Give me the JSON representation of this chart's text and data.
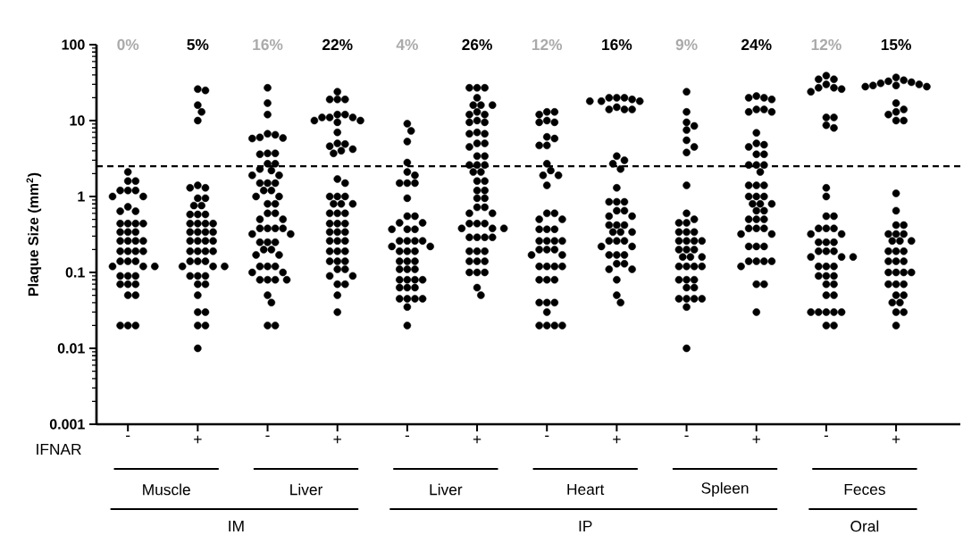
{
  "chart_data": {
    "type": "scatter",
    "ylabel": "Plaque Size (mm$^{2}$)",
    "categories": [
      "-",
      "+",
      "-",
      "+",
      "-",
      "+",
      "-",
      "+",
      "-",
      "+",
      "-",
      "+"
    ],
    "series": [
      {
        "color": "#000000",
        "values": [
          2.1,
          26,
          27,
          24,
          9.1,
          27,
          13,
          20,
          24,
          21,
          39,
          37
        ]
      },
      {
        "color": "#000000",
        "values": [
          1.6,
          25,
          17,
          19,
          7.3,
          27,
          12,
          20,
          13,
          20,
          35,
          34
        ]
      },
      {
        "color": "#000000",
        "values": [
          1.6,
          16,
          12,
          19,
          5.3,
          27,
          13,
          19,
          9.5,
          20,
          35,
          32
        ]
      },
      {
        "color": "#000000",
        "values": [
          1.2,
          13,
          6.7,
          19,
          2.8,
          20,
          10,
          20,
          8.5,
          19,
          30,
          30
        ]
      },
      {
        "color": "#000000",
        "values": [
          1.2,
          10,
          6.5,
          12,
          2.1,
          16,
          9.5,
          18,
          7.5,
          14,
          27,
          29
        ]
      },
      {
        "color": "#000000",
        "values": [
          1.2,
          1.4,
          6,
          12,
          1.9,
          16,
          9.5,
          18,
          5.5,
          14,
          27,
          28
        ]
      },
      {
        "color": "#000000",
        "values": [
          1,
          1.3,
          5.9,
          11,
          1.5,
          16,
          6.1,
          18,
          4.5,
          13,
          26,
          28
        ]
      },
      {
        "color": "#000000",
        "values": [
          1,
          1.3,
          5.8,
          11,
          1.5,
          13,
          5.8,
          15,
          3.8,
          13,
          24,
          29
        ]
      },
      {
        "color": "#000000",
        "values": [
          0.73,
          0.95,
          3.7,
          11,
          1.5,
          12,
          4.7,
          14,
          1.4,
          6.9,
          11,
          31
        ]
      },
      {
        "color": "#000000",
        "values": [
          0.64,
          0.95,
          3.6,
          10,
          0.95,
          12,
          4.7,
          14,
          0.6,
          5,
          11,
          33
        ]
      },
      {
        "color": "#000000",
        "values": [
          0.64,
          0.76,
          3.7,
          10,
          0.55,
          10,
          2.7,
          14,
          0.5,
          4.8,
          8.7,
          17
        ]
      },
      {
        "color": "#000000",
        "values": [
          0.44,
          0.76,
          2.7,
          9.5,
          0.55,
          9.5,
          2.2,
          3.4,
          0.45,
          4.5,
          8,
          14
        ]
      },
      {
        "color": "#000000",
        "values": [
          0.44,
          0.58,
          2.7,
          7,
          0.45,
          9.5,
          1.9,
          3,
          0.45,
          3.6,
          1.3,
          13
        ]
      },
      {
        "color": "#000000",
        "values": [
          0.44,
          0.58,
          2.3,
          5,
          0.45,
          7,
          1.9,
          2.7,
          0.34,
          3.6,
          1,
          12
        ]
      },
      {
        "color": "#000000",
        "values": [
          0.44,
          0.58,
          2.2,
          4.9,
          0.37,
          6.7,
          1.4,
          2.3,
          0.34,
          2.6,
          0.55,
          10
        ]
      },
      {
        "color": "#000000",
        "values": [
          0.34,
          0.44,
          1.9,
          4.6,
          0.37,
          6.7,
          0.6,
          1.3,
          0.34,
          2.6,
          0.55,
          10
        ]
      },
      {
        "color": "#000000",
        "values": [
          0.34,
          0.44,
          1.9,
          4.2,
          0.37,
          5,
          0.6,
          0.85,
          0.26,
          2.6,
          0.38,
          1.1
        ]
      },
      {
        "color": "#000000",
        "values": [
          0.34,
          0.44,
          1.5,
          4,
          0.26,
          5,
          0.5,
          0.85,
          0.26,
          2.1,
          0.38,
          0.65
        ]
      },
      {
        "color": "#000000",
        "values": [
          0.26,
          0.44,
          1.5,
          3.7,
          0.26,
          4.5,
          0.5,
          0.85,
          0.26,
          1.4,
          0.38,
          0.42
        ]
      },
      {
        "color": "#000000",
        "values": [
          0.26,
          0.34,
          1.5,
          1.7,
          0.26,
          3.4,
          0.37,
          0.65,
          0.26,
          1.4,
          0.32,
          0.42
        ]
      },
      {
        "color": "#000000",
        "values": [
          0.26,
          0.34,
          1.2,
          1.5,
          0.26,
          3.4,
          0.37,
          0.65,
          0.2,
          1.4,
          0.32,
          0.32
        ]
      },
      {
        "color": "#000000",
        "values": [
          0.26,
          0.34,
          1.2,
          1,
          0.22,
          2.6,
          0.37,
          0.55,
          0.2,
          1,
          0.25,
          0.32
        ]
      },
      {
        "color": "#000000",
        "values": [
          0.19,
          0.34,
          1,
          1,
          0.22,
          2.6,
          0.26,
          0.55,
          0.2,
          1,
          0.25,
          0.32
        ]
      },
      {
        "color": "#000000",
        "values": [
          0.19,
          0.26,
          1,
          1,
          0.19,
          2.6,
          0.26,
          0.42,
          0.16,
          1,
          0.25,
          0.26
        ]
      },
      {
        "color": "#000000",
        "values": [
          0.19,
          0.26,
          0.8,
          0.8,
          0.19,
          2.1,
          0.26,
          0.42,
          0.16,
          0.8,
          0.19,
          0.26
        ]
      },
      {
        "color": "#000000",
        "values": [
          0.19,
          0.26,
          0.8,
          0.8,
          0.19,
          2.1,
          0.26,
          0.42,
          0.16,
          0.8,
          0.19,
          0.26
        ]
      },
      {
        "color": "#000000",
        "values": [
          0.14,
          0.26,
          0.6,
          0.8,
          0.14,
          1.6,
          0.2,
          0.34,
          0.12,
          0.8,
          0.19,
          0.19
        ]
      },
      {
        "color": "#000000",
        "values": [
          0.14,
          0.19,
          0.6,
          0.6,
          0.14,
          1.6,
          0.2,
          0.34,
          0.12,
          0.65,
          0.16,
          0.19
        ]
      },
      {
        "color": "#000000",
        "values": [
          0.14,
          0.19,
          0.5,
          0.6,
          0.14,
          1.2,
          0.2,
          0.34,
          0.12,
          0.65,
          0.16,
          0.19
        ]
      },
      {
        "color": "#000000",
        "values": [
          0.12,
          0.19,
          0.5,
          0.6,
          0.11,
          1.2,
          0.17,
          0.26,
          0.12,
          0.5,
          0.16,
          0.14
        ]
      },
      {
        "color": "#000000",
        "values": [
          0.12,
          0.19,
          0.38,
          0.44,
          0.11,
          0.95,
          0.17,
          0.26,
          0.08,
          0.5,
          0.12,
          0.14
        ]
      },
      {
        "color": "#000000",
        "values": [
          0.12,
          0.14,
          0.38,
          0.44,
          0.11,
          0.95,
          0.12,
          0.26,
          0.08,
          0.5,
          0.12,
          0.14
        ]
      },
      {
        "color": "#000000",
        "values": [
          0.09,
          0.14,
          0.38,
          0.44,
          0.08,
          0.72,
          0.12,
          0.22,
          0.08,
          0.38,
          0.12,
          0.1
        ]
      },
      {
        "color": "#000000",
        "values": [
          0.09,
          0.14,
          0.38,
          0.34,
          0.08,
          0.72,
          0.12,
          0.22,
          0.063,
          0.38,
          0.09,
          0.1
        ]
      },
      {
        "color": "#000000",
        "values": [
          0.09,
          0.12,
          0.32,
          0.34,
          0.08,
          0.6,
          0.12,
          0.17,
          0.063,
          0.38,
          0.09,
          0.1
        ]
      },
      {
        "color": "#000000",
        "values": [
          0.07,
          0.12,
          0.32,
          0.34,
          0.08,
          0.6,
          0.08,
          0.17,
          0.045,
          0.32,
          0.09,
          0.1
        ]
      },
      {
        "color": "#000000",
        "values": [
          0.07,
          0.12,
          0.25,
          0.26,
          0.063,
          0.44,
          0.08,
          0.17,
          0.045,
          0.32,
          0.07,
          0.07
        ]
      },
      {
        "color": "#000000",
        "values": [
          0.07,
          0.09,
          0.25,
          0.26,
          0.063,
          0.44,
          0.08,
          0.13,
          0.045,
          0.22,
          0.07,
          0.07
        ]
      },
      {
        "color": "#000000",
        "values": [
          0.05,
          0.09,
          0.25,
          0.26,
          0.063,
          0.44,
          0.04,
          0.13,
          0.045,
          0.22,
          0.05,
          0.07
        ]
      },
      {
        "color": "#000000",
        "values": [
          0.05,
          0.09,
          0.2,
          0.19,
          0.045,
          0.38,
          0.04,
          0.11,
          0.035,
          0.22,
          0.05,
          0.05
        ]
      },
      {
        "color": "#000000",
        "values": [
          0.02,
          0.07,
          0.2,
          0.19,
          0.045,
          0.38,
          0.04,
          0.11,
          0.01,
          0.14,
          0.03,
          0.05
        ]
      },
      {
        "color": "#000000",
        "values": [
          0.02,
          0.07,
          0.17,
          0.19,
          0.045,
          0.38,
          0.03,
          0.08,
          null,
          0.14,
          0.03,
          0.04
        ]
      },
      {
        "color": "#000000",
        "values": [
          0.02,
          0.05,
          0.17,
          0.14,
          0.045,
          0.29,
          0.02,
          0.05,
          null,
          0.14,
          0.03,
          0.04
        ]
      },
      {
        "color": "#000000",
        "values": [
          null,
          0.03,
          0.12,
          0.14,
          0.035,
          0.29,
          0.02,
          0.04,
          null,
          0.14,
          0.03,
          0.03
        ]
      },
      {
        "color": "#000000",
        "values": [
          null,
          0.03,
          0.12,
          0.14,
          0.02,
          0.29,
          0.02,
          null,
          null,
          0.12,
          0.03,
          0.03
        ]
      },
      {
        "color": "#000000",
        "values": [
          null,
          0.02,
          0.12,
          0.11,
          null,
          0.29,
          0.02,
          null,
          null,
          0.07,
          0.02,
          0.02
        ]
      },
      {
        "color": "#000000",
        "values": [
          null,
          0.02,
          0.1,
          0.11,
          null,
          0.19,
          null,
          null,
          null,
          0.07,
          0.02,
          null
        ]
      },
      {
        "color": "#000000",
        "values": [
          null,
          0.01,
          0.1,
          0.09,
          null,
          0.19,
          null,
          null,
          null,
          0.03,
          null,
          null
        ]
      },
      {
        "color": "#000000",
        "values": [
          null,
          null,
          0.08,
          0.09,
          null,
          0.19,
          null,
          null,
          null,
          null,
          null,
          null
        ]
      },
      {
        "color": "#000000",
        "values": [
          null,
          null,
          0.08,
          0.07,
          null,
          0.14,
          null,
          null,
          null,
          null,
          null,
          null
        ]
      },
      {
        "color": "#000000",
        "values": [
          null,
          null,
          0.08,
          0.07,
          null,
          0.14,
          null,
          null,
          null,
          null,
          null,
          null
        ]
      },
      {
        "color": "#000000",
        "values": [
          null,
          null,
          0.08,
          0.05,
          null,
          0.14,
          null,
          null,
          null,
          null,
          null,
          null
        ]
      },
      {
        "color": "#000000",
        "values": [
          null,
          null,
          0.05,
          0.03,
          null,
          0.1,
          null,
          null,
          null,
          null,
          null,
          null
        ]
      },
      {
        "color": "#000000",
        "values": [
          null,
          null,
          0.04,
          null,
          null,
          0.1,
          null,
          null,
          null,
          null,
          null,
          null
        ]
      },
      {
        "color": "#000000",
        "values": [
          null,
          null,
          0.02,
          null,
          null,
          0.1,
          null,
          null,
          null,
          null,
          null,
          null
        ]
      },
      {
        "color": "#000000",
        "values": [
          null,
          null,
          0.02,
          null,
          null,
          0.063,
          null,
          null,
          null,
          null,
          null,
          null
        ]
      },
      {
        "color": "#000000",
        "values": [
          null,
          null,
          null,
          null,
          null,
          0.05,
          null,
          null,
          null,
          null,
          null,
          null
        ]
      }
    ],
    "ylim": [
      0.001,
      100
    ],
    "yticks": [
      0.001,
      0.01,
      0.1,
      1,
      10,
      100
    ],
    "log": "y",
    "marker": "circle",
    "ref_lines": [
      {
        "axis": "y",
        "value": 2.5,
        "line_style": "dashed",
        "color": "#000000"
      }
    ],
    "annotations": [
      "0%",
      "5%",
      "16%",
      "22%",
      "4%",
      "26%",
      "12%",
      "16%",
      "9%",
      "24%",
      "12%",
      "15%",
      "IFNAR",
      "Muscle",
      "Liver",
      "Liver",
      "Heart",
      "Spleen",
      "Feces",
      "IM",
      "IP",
      "Oral"
    ]
  }
}
